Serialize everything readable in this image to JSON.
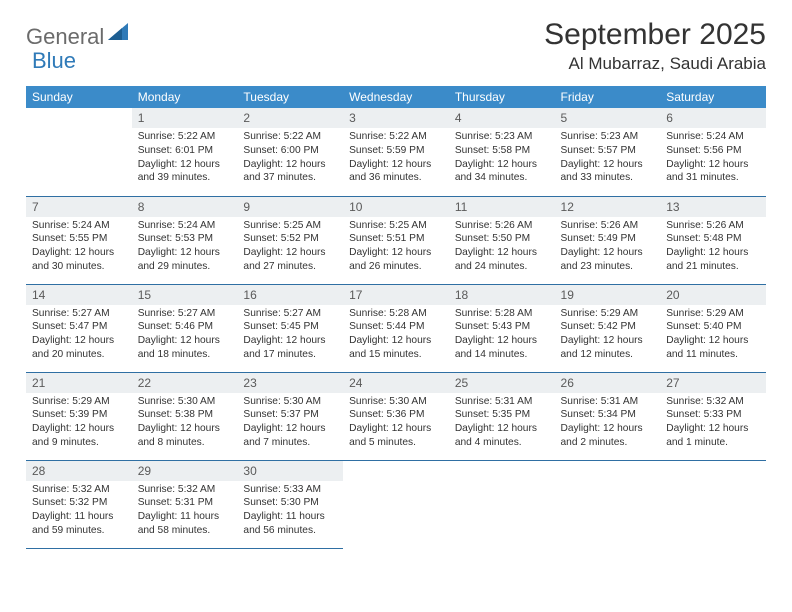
{
  "brand": {
    "part1": "General",
    "part2": "Blue"
  },
  "title": "September 2025",
  "location": "Al Mubarraz, Saudi Arabia",
  "colors": {
    "header_bg": "#3b8bc9",
    "header_text": "#ffffff",
    "daynum_bg": "#eceff1",
    "border": "#2f6fa3",
    "brand_gray": "#6b6b6b",
    "brand_blue": "#2f7ab8"
  },
  "weekdays": [
    "Sunday",
    "Monday",
    "Tuesday",
    "Wednesday",
    "Thursday",
    "Friday",
    "Saturday"
  ],
  "weeks": [
    [
      {
        "n": "",
        "sr": "",
        "ss": "",
        "dl": "",
        "empty": true
      },
      {
        "n": "1",
        "sr": "Sunrise: 5:22 AM",
        "ss": "Sunset: 6:01 PM",
        "dl": "Daylight: 12 hours and 39 minutes."
      },
      {
        "n": "2",
        "sr": "Sunrise: 5:22 AM",
        "ss": "Sunset: 6:00 PM",
        "dl": "Daylight: 12 hours and 37 minutes."
      },
      {
        "n": "3",
        "sr": "Sunrise: 5:22 AM",
        "ss": "Sunset: 5:59 PM",
        "dl": "Daylight: 12 hours and 36 minutes."
      },
      {
        "n": "4",
        "sr": "Sunrise: 5:23 AM",
        "ss": "Sunset: 5:58 PM",
        "dl": "Daylight: 12 hours and 34 minutes."
      },
      {
        "n": "5",
        "sr": "Sunrise: 5:23 AM",
        "ss": "Sunset: 5:57 PM",
        "dl": "Daylight: 12 hours and 33 minutes."
      },
      {
        "n": "6",
        "sr": "Sunrise: 5:24 AM",
        "ss": "Sunset: 5:56 PM",
        "dl": "Daylight: 12 hours and 31 minutes."
      }
    ],
    [
      {
        "n": "7",
        "sr": "Sunrise: 5:24 AM",
        "ss": "Sunset: 5:55 PM",
        "dl": "Daylight: 12 hours and 30 minutes."
      },
      {
        "n": "8",
        "sr": "Sunrise: 5:24 AM",
        "ss": "Sunset: 5:53 PM",
        "dl": "Daylight: 12 hours and 29 minutes."
      },
      {
        "n": "9",
        "sr": "Sunrise: 5:25 AM",
        "ss": "Sunset: 5:52 PM",
        "dl": "Daylight: 12 hours and 27 minutes."
      },
      {
        "n": "10",
        "sr": "Sunrise: 5:25 AM",
        "ss": "Sunset: 5:51 PM",
        "dl": "Daylight: 12 hours and 26 minutes."
      },
      {
        "n": "11",
        "sr": "Sunrise: 5:26 AM",
        "ss": "Sunset: 5:50 PM",
        "dl": "Daylight: 12 hours and 24 minutes."
      },
      {
        "n": "12",
        "sr": "Sunrise: 5:26 AM",
        "ss": "Sunset: 5:49 PM",
        "dl": "Daylight: 12 hours and 23 minutes."
      },
      {
        "n": "13",
        "sr": "Sunrise: 5:26 AM",
        "ss": "Sunset: 5:48 PM",
        "dl": "Daylight: 12 hours and 21 minutes."
      }
    ],
    [
      {
        "n": "14",
        "sr": "Sunrise: 5:27 AM",
        "ss": "Sunset: 5:47 PM",
        "dl": "Daylight: 12 hours and 20 minutes."
      },
      {
        "n": "15",
        "sr": "Sunrise: 5:27 AM",
        "ss": "Sunset: 5:46 PM",
        "dl": "Daylight: 12 hours and 18 minutes."
      },
      {
        "n": "16",
        "sr": "Sunrise: 5:27 AM",
        "ss": "Sunset: 5:45 PM",
        "dl": "Daylight: 12 hours and 17 minutes."
      },
      {
        "n": "17",
        "sr": "Sunrise: 5:28 AM",
        "ss": "Sunset: 5:44 PM",
        "dl": "Daylight: 12 hours and 15 minutes."
      },
      {
        "n": "18",
        "sr": "Sunrise: 5:28 AM",
        "ss": "Sunset: 5:43 PM",
        "dl": "Daylight: 12 hours and 14 minutes."
      },
      {
        "n": "19",
        "sr": "Sunrise: 5:29 AM",
        "ss": "Sunset: 5:42 PM",
        "dl": "Daylight: 12 hours and 12 minutes."
      },
      {
        "n": "20",
        "sr": "Sunrise: 5:29 AM",
        "ss": "Sunset: 5:40 PM",
        "dl": "Daylight: 12 hours and 11 minutes."
      }
    ],
    [
      {
        "n": "21",
        "sr": "Sunrise: 5:29 AM",
        "ss": "Sunset: 5:39 PM",
        "dl": "Daylight: 12 hours and 9 minutes."
      },
      {
        "n": "22",
        "sr": "Sunrise: 5:30 AM",
        "ss": "Sunset: 5:38 PM",
        "dl": "Daylight: 12 hours and 8 minutes."
      },
      {
        "n": "23",
        "sr": "Sunrise: 5:30 AM",
        "ss": "Sunset: 5:37 PM",
        "dl": "Daylight: 12 hours and 7 minutes."
      },
      {
        "n": "24",
        "sr": "Sunrise: 5:30 AM",
        "ss": "Sunset: 5:36 PM",
        "dl": "Daylight: 12 hours and 5 minutes."
      },
      {
        "n": "25",
        "sr": "Sunrise: 5:31 AM",
        "ss": "Sunset: 5:35 PM",
        "dl": "Daylight: 12 hours and 4 minutes."
      },
      {
        "n": "26",
        "sr": "Sunrise: 5:31 AM",
        "ss": "Sunset: 5:34 PM",
        "dl": "Daylight: 12 hours and 2 minutes."
      },
      {
        "n": "27",
        "sr": "Sunrise: 5:32 AM",
        "ss": "Sunset: 5:33 PM",
        "dl": "Daylight: 12 hours and 1 minute."
      }
    ],
    [
      {
        "n": "28",
        "sr": "Sunrise: 5:32 AM",
        "ss": "Sunset: 5:32 PM",
        "dl": "Daylight: 11 hours and 59 minutes."
      },
      {
        "n": "29",
        "sr": "Sunrise: 5:32 AM",
        "ss": "Sunset: 5:31 PM",
        "dl": "Daylight: 11 hours and 58 minutes."
      },
      {
        "n": "30",
        "sr": "Sunrise: 5:33 AM",
        "ss": "Sunset: 5:30 PM",
        "dl": "Daylight: 11 hours and 56 minutes."
      },
      {
        "n": "",
        "sr": "",
        "ss": "",
        "dl": "",
        "empty": true,
        "trailing": true
      },
      {
        "n": "",
        "sr": "",
        "ss": "",
        "dl": "",
        "empty": true,
        "trailing": true
      },
      {
        "n": "",
        "sr": "",
        "ss": "",
        "dl": "",
        "empty": true,
        "trailing": true
      },
      {
        "n": "",
        "sr": "",
        "ss": "",
        "dl": "",
        "empty": true,
        "trailing": true
      }
    ]
  ]
}
